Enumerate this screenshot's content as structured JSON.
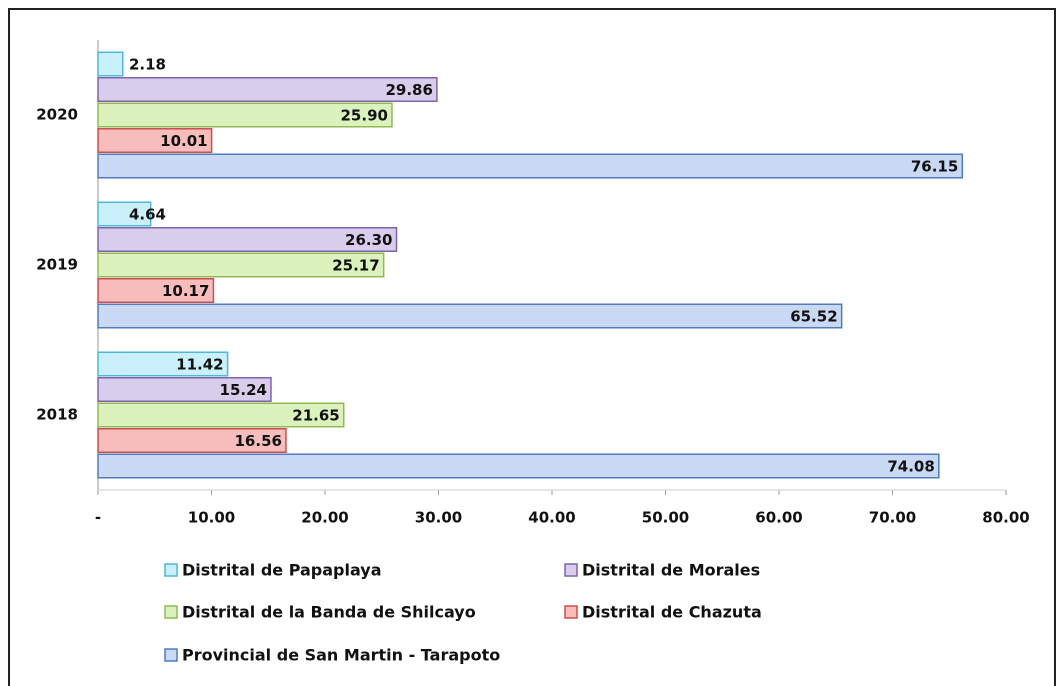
{
  "chart_data": {
    "type": "bar",
    "orientation": "horizontal",
    "categories": [
      "2018",
      "2019",
      "2020"
    ],
    "series": [
      {
        "name": "Distrital de Papaplaya",
        "color": "#c9f0fb",
        "stroke": "#4fb8d8",
        "values": [
          11.42,
          4.64,
          2.18
        ],
        "value_labels": [
          "11.42",
          "4.64",
          "2.18"
        ]
      },
      {
        "name": "Distrital de Morales",
        "color": "#d9cdec",
        "stroke": "#7f63a8",
        "values": [
          15.24,
          26.3,
          29.86
        ],
        "value_labels": [
          "15.24",
          "26.30",
          "29.86"
        ]
      },
      {
        "name": "Distrital de la Banda de Shilcayo",
        "color": "#dcf2bd",
        "stroke": "#92b955",
        "values": [
          21.65,
          25.17,
          25.9
        ],
        "value_labels": [
          "21.65",
          "25.17",
          "25.90"
        ]
      },
      {
        "name": "Distrital de Chazuta",
        "color": "#f7bcbc",
        "stroke": "#c9504c",
        "values": [
          16.56,
          10.17,
          10.01
        ],
        "value_labels": [
          "16.56",
          "10.17",
          "10.01"
        ]
      },
      {
        "name": "Provincial de San Martin - Tarapoto",
        "color": "#c9d9f3",
        "stroke": "#4f7cbd",
        "values": [
          74.08,
          65.52,
          76.15
        ],
        "value_labels": [
          "74.08",
          "65.52",
          "76.15"
        ]
      }
    ],
    "xlim": [
      0,
      80
    ],
    "xticks": [
      {
        "value": 0,
        "label": "-"
      },
      {
        "value": 10,
        "label": "10.00"
      },
      {
        "value": 20,
        "label": "20.00"
      },
      {
        "value": 30,
        "label": "30.00"
      },
      {
        "value": 40,
        "label": "40.00"
      },
      {
        "value": 50,
        "label": "50.00"
      },
      {
        "value": 60,
        "label": "60.00"
      },
      {
        "value": 70,
        "label": "70.00"
      },
      {
        "value": 80,
        "label": "80.00"
      }
    ],
    "legend": "bottom"
  }
}
